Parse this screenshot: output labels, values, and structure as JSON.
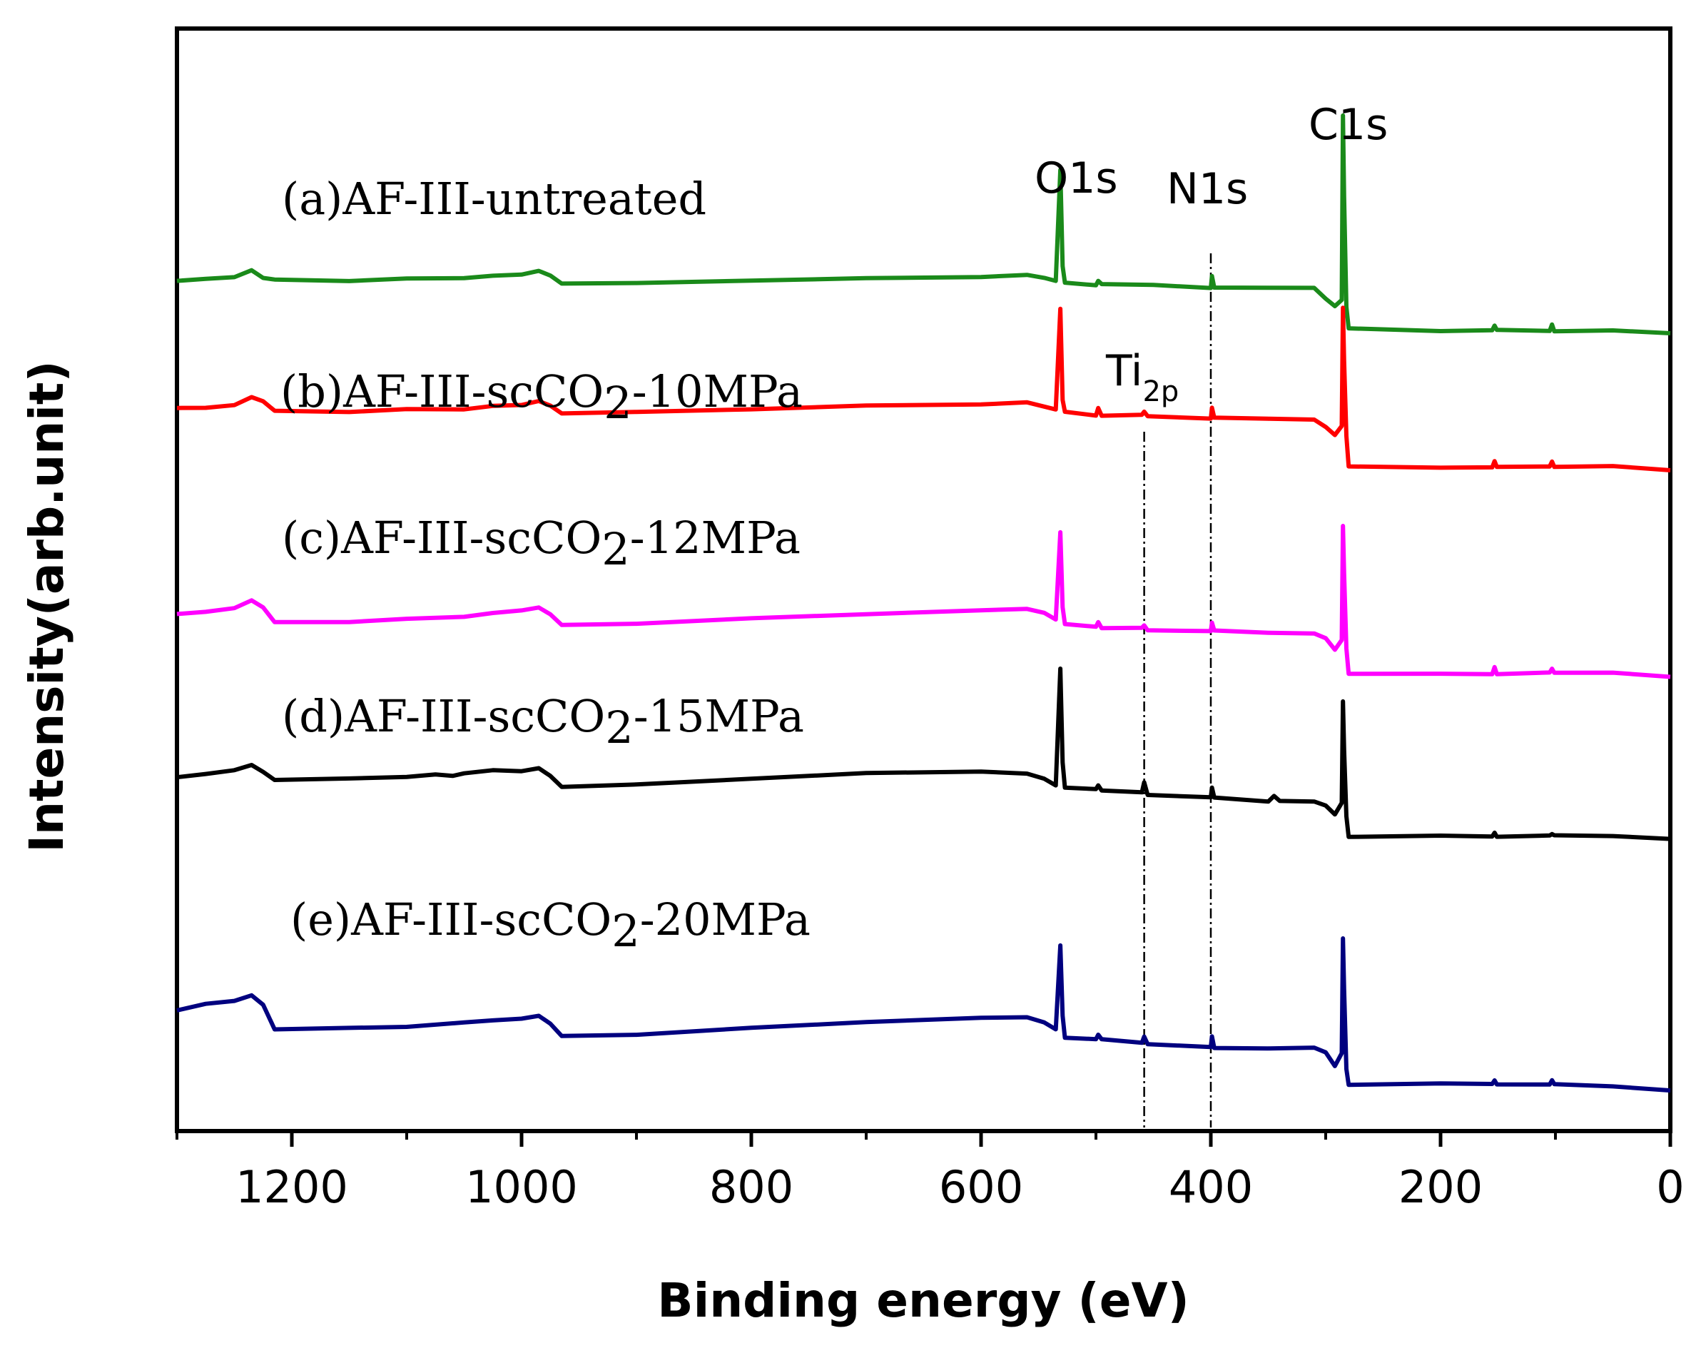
{
  "chart_data": {
    "type": "line",
    "title": "",
    "xlabel": "Binding energy (eV)",
    "ylabel": "Intensity(arb.unit)",
    "xlim": [
      1300,
      0
    ],
    "xticks": [
      1200,
      1000,
      800,
      600,
      400,
      200,
      0
    ],
    "x_minor_ticks": [
      1300,
      1100,
      900,
      700,
      500,
      300,
      100
    ],
    "grid": false,
    "peak_labels": [
      {
        "text": "O1s",
        "sub": "",
        "x": 531
      },
      {
        "text": "N1s",
        "sub": "",
        "x": 400
      },
      {
        "text": "C1s",
        "sub": "",
        "x": 285
      },
      {
        "text": "Ti",
        "sub": "2p",
        "x": 458
      }
    ],
    "reference_lines": [
      458,
      400
    ],
    "series": [
      {
        "name": "(a)AF-III-untreated",
        "label_parts": [
          "(a)AF-III-untreated"
        ],
        "color": "#1a8a1a",
        "points": [
          [
            1300,
            8
          ],
          [
            1275,
            10
          ],
          [
            1250,
            12
          ],
          [
            1235,
            17
          ],
          [
            1225,
            11
          ],
          [
            1215,
            9
          ],
          [
            1150,
            9
          ],
          [
            1100,
            10
          ],
          [
            1050,
            11
          ],
          [
            1025,
            13
          ],
          [
            1000,
            13
          ],
          [
            985,
            16
          ],
          [
            975,
            12
          ],
          [
            965,
            7
          ],
          [
            900,
            7
          ],
          [
            800,
            9
          ],
          [
            700,
            11
          ],
          [
            600,
            12
          ],
          [
            560,
            13
          ],
          [
            545,
            11
          ],
          [
            535,
            8
          ],
          [
            531,
            90
          ],
          [
            529,
            20
          ],
          [
            527,
            7
          ],
          [
            500,
            6
          ],
          [
            498,
            8
          ],
          [
            495,
            6
          ],
          [
            450,
            5
          ],
          [
            400,
            4
          ],
          [
            399,
            12
          ],
          [
            397,
            4
          ],
          [
            350,
            3
          ],
          [
            310,
            3
          ],
          [
            300,
            -4
          ],
          [
            292,
            -10
          ],
          [
            286,
            -5
          ],
          [
            285,
            131
          ],
          [
            284,
            70
          ],
          [
            282,
            -10
          ],
          [
            280,
            -27
          ],
          [
            200,
            -28
          ],
          [
            155,
            -28
          ],
          [
            153,
            -24
          ],
          [
            151,
            -28
          ],
          [
            105,
            -28
          ],
          [
            103,
            -24
          ],
          [
            101,
            -28
          ],
          [
            50,
            -28
          ],
          [
            0,
            -30
          ]
        ]
      },
      {
        "name": "(b)AF-III-scCO2-10MPa",
        "label_parts": [
          "(b)AF-III-scCO",
          "2",
          "-10MPa"
        ],
        "color": "#ff0000",
        "points": [
          [
            1300,
            5
          ],
          [
            1275,
            6
          ],
          [
            1250,
            8
          ],
          [
            1235,
            14
          ],
          [
            1225,
            10
          ],
          [
            1215,
            3
          ],
          [
            1150,
            3
          ],
          [
            1100,
            4
          ],
          [
            1050,
            5
          ],
          [
            1025,
            7
          ],
          [
            1000,
            7
          ],
          [
            985,
            10
          ],
          [
            975,
            7
          ],
          [
            965,
            2
          ],
          [
            900,
            2
          ],
          [
            800,
            4
          ],
          [
            700,
            7
          ],
          [
            600,
            8
          ],
          [
            560,
            9
          ],
          [
            545,
            6
          ],
          [
            535,
            4
          ],
          [
            531,
            78
          ],
          [
            529,
            12
          ],
          [
            527,
            2
          ],
          [
            500,
            0
          ],
          [
            498,
            5
          ],
          [
            495,
            0
          ],
          [
            460,
            0
          ],
          [
            458,
            3
          ],
          [
            455,
            0
          ],
          [
            400,
            -2
          ],
          [
            399,
            6
          ],
          [
            397,
            -2
          ],
          [
            350,
            -3
          ],
          [
            310,
            -3
          ],
          [
            300,
            -8
          ],
          [
            292,
            -14
          ],
          [
            286,
            -8
          ],
          [
            285,
            80
          ],
          [
            284,
            40
          ],
          [
            282,
            -15
          ],
          [
            280,
            -38
          ],
          [
            200,
            -38
          ],
          [
            155,
            -38
          ],
          [
            153,
            -34
          ],
          [
            151,
            -38
          ],
          [
            105,
            -38
          ],
          [
            103,
            -34
          ],
          [
            101,
            -38
          ],
          [
            50,
            -38
          ],
          [
            0,
            -40
          ]
        ]
      },
      {
        "name": "(c)AF-III-scCO2-12MPa",
        "label_parts": [
          "(c)AF-III-scCO",
          "2",
          "-12MPa"
        ],
        "color": "#ff00ff",
        "points": [
          [
            1300,
            0
          ],
          [
            1275,
            2
          ],
          [
            1250,
            4
          ],
          [
            1235,
            10
          ],
          [
            1225,
            4
          ],
          [
            1215,
            -6
          ],
          [
            1150,
            -6
          ],
          [
            1100,
            -4
          ],
          [
            1050,
            -2
          ],
          [
            1025,
            0
          ],
          [
            1000,
            2
          ],
          [
            985,
            4
          ],
          [
            975,
            0
          ],
          [
            965,
            -8
          ],
          [
            900,
            -8
          ],
          [
            800,
            -4
          ],
          [
            700,
            -1
          ],
          [
            600,
            2
          ],
          [
            560,
            3
          ],
          [
            545,
            0
          ],
          [
            535,
            -4
          ],
          [
            531,
            60
          ],
          [
            529,
            5
          ],
          [
            527,
            -8
          ],
          [
            500,
            -10
          ],
          [
            498,
            -6
          ],
          [
            495,
            -10
          ],
          [
            460,
            -11
          ],
          [
            458,
            -8
          ],
          [
            455,
            -12
          ],
          [
            400,
            -13
          ],
          [
            399,
            -6
          ],
          [
            397,
            -13
          ],
          [
            350,
            -14
          ],
          [
            310,
            -14
          ],
          [
            300,
            -18
          ],
          [
            292,
            -26
          ],
          [
            286,
            -20
          ],
          [
            285,
            65
          ],
          [
            284,
            30
          ],
          [
            282,
            -26
          ],
          [
            280,
            -44
          ],
          [
            200,
            -44
          ],
          [
            155,
            -44
          ],
          [
            153,
            -40
          ],
          [
            151,
            -44
          ],
          [
            105,
            -44
          ],
          [
            103,
            -40
          ],
          [
            101,
            -44
          ],
          [
            50,
            -44
          ],
          [
            0,
            -46
          ]
        ]
      },
      {
        "name": "(d)AF-III-scCO2-15MPa",
        "label_parts": [
          "(d)AF-III-scCO",
          "2",
          "-15MPa"
        ],
        "color": "#000000",
        "points": [
          [
            1300,
            0
          ],
          [
            1275,
            2
          ],
          [
            1250,
            4
          ],
          [
            1235,
            8
          ],
          [
            1225,
            3
          ],
          [
            1215,
            -2
          ],
          [
            1150,
            -2
          ],
          [
            1100,
            0
          ],
          [
            1075,
            2
          ],
          [
            1060,
            1
          ],
          [
            1050,
            2
          ],
          [
            1025,
            4
          ],
          [
            1000,
            4
          ],
          [
            985,
            6
          ],
          [
            975,
            1
          ],
          [
            965,
            -8
          ],
          [
            900,
            -6
          ],
          [
            800,
            -2
          ],
          [
            700,
            2
          ],
          [
            600,
            3
          ],
          [
            560,
            2
          ],
          [
            545,
            -2
          ],
          [
            535,
            -6
          ],
          [
            531,
            80
          ],
          [
            529,
            10
          ],
          [
            527,
            -8
          ],
          [
            500,
            -10
          ],
          [
            498,
            -6
          ],
          [
            495,
            -10
          ],
          [
            460,
            -12
          ],
          [
            458,
            -4
          ],
          [
            455,
            -14
          ],
          [
            400,
            -16
          ],
          [
            399,
            -8
          ],
          [
            397,
            -16
          ],
          [
            350,
            -18
          ],
          [
            345,
            -15
          ],
          [
            340,
            -18
          ],
          [
            310,
            -18
          ],
          [
            300,
            -22
          ],
          [
            292,
            -28
          ],
          [
            286,
            -20
          ],
          [
            285,
            55
          ],
          [
            284,
            20
          ],
          [
            282,
            -30
          ],
          [
            280,
            -44
          ],
          [
            200,
            -44
          ],
          [
            155,
            -44
          ],
          [
            153,
            -42
          ],
          [
            151,
            -44
          ],
          [
            105,
            -44
          ],
          [
            103,
            -42
          ],
          [
            101,
            -44
          ],
          [
            50,
            -44
          ],
          [
            0,
            -46
          ]
        ]
      },
      {
        "name": "(e)AF-III-scCO2-20MPa",
        "label_parts": [
          "(e)AF-III-scCO",
          "2",
          "-20MPa"
        ],
        "color": "#00007f",
        "points": [
          [
            1300,
            0
          ],
          [
            1275,
            4
          ],
          [
            1250,
            6
          ],
          [
            1235,
            10
          ],
          [
            1225,
            4
          ],
          [
            1215,
            -14
          ],
          [
            1150,
            -14
          ],
          [
            1100,
            -12
          ],
          [
            1050,
            -10
          ],
          [
            1025,
            -8
          ],
          [
            1000,
            -6
          ],
          [
            985,
            -4
          ],
          [
            975,
            -10
          ],
          [
            965,
            -20
          ],
          [
            900,
            -18
          ],
          [
            800,
            -13
          ],
          [
            700,
            -9
          ],
          [
            600,
            -6
          ],
          [
            560,
            -5
          ],
          [
            545,
            -9
          ],
          [
            535,
            -14
          ],
          [
            531,
            48
          ],
          [
            529,
            -5
          ],
          [
            527,
            -20
          ],
          [
            500,
            -22
          ],
          [
            498,
            -18
          ],
          [
            495,
            -22
          ],
          [
            460,
            -24
          ],
          [
            458,
            -20
          ],
          [
            455,
            -26
          ],
          [
            400,
            -28
          ],
          [
            399,
            -20
          ],
          [
            397,
            -28
          ],
          [
            350,
            -28
          ],
          [
            310,
            -28
          ],
          [
            300,
            -32
          ],
          [
            292,
            -42
          ],
          [
            286,
            -32
          ],
          [
            285,
            52
          ],
          [
            284,
            15
          ],
          [
            282,
            -44
          ],
          [
            280,
            -55
          ],
          [
            200,
            -55
          ],
          [
            155,
            -55
          ],
          [
            153,
            -52
          ],
          [
            151,
            -55
          ],
          [
            105,
            -55
          ],
          [
            103,
            -52
          ],
          [
            101,
            -55
          ],
          [
            50,
            -56
          ],
          [
            0,
            -60
          ]
        ]
      }
    ]
  }
}
